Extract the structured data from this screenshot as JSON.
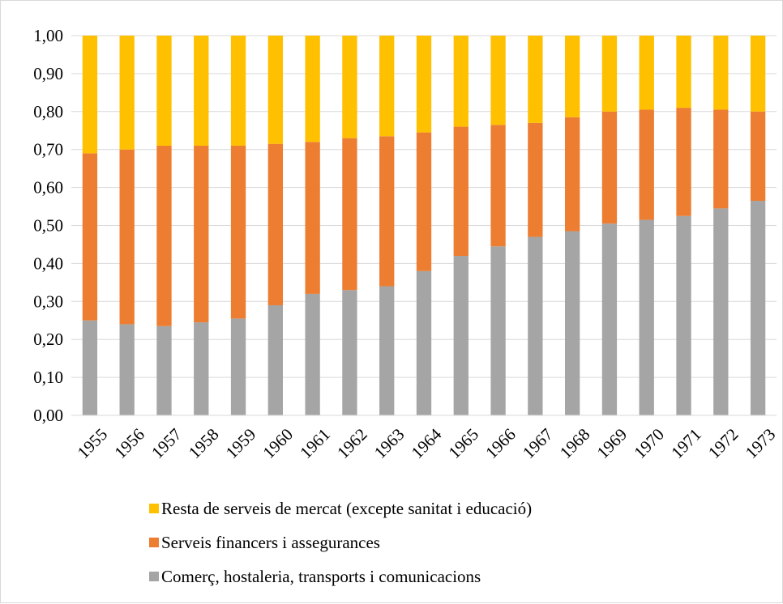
{
  "chart_data": {
    "type": "bar",
    "stacked": true,
    "title": "",
    "xlabel": "",
    "ylabel": "",
    "ylim": [
      0,
      1
    ],
    "y_ticks": [
      "0,00",
      "0,10",
      "0,20",
      "0,30",
      "0,40",
      "0,50",
      "0,60",
      "0,70",
      "0,80",
      "0,90",
      "1,00"
    ],
    "grid": "horizontal",
    "legend_position": "bottom",
    "categories": [
      "1955",
      "1956",
      "1957",
      "1958",
      "1959",
      "1960",
      "1961",
      "1962",
      "1963",
      "1964",
      "1965",
      "1966",
      "1967",
      "1968",
      "1969",
      "1970",
      "1971",
      "1972",
      "1973"
    ],
    "series": [
      {
        "name": "Comerç, hostaleria, transports i comunicacions",
        "color": "#a5a5a5",
        "values": [
          0.25,
          0.24,
          0.235,
          0.245,
          0.255,
          0.29,
          0.32,
          0.33,
          0.34,
          0.38,
          0.42,
          0.445,
          0.47,
          0.485,
          0.505,
          0.515,
          0.525,
          0.545,
          0.565
        ]
      },
      {
        "name": "Serveis financers i assegurances",
        "color": "#ed7d31",
        "values": [
          0.44,
          0.46,
          0.475,
          0.465,
          0.455,
          0.425,
          0.4,
          0.4,
          0.395,
          0.365,
          0.34,
          0.32,
          0.3,
          0.3,
          0.295,
          0.29,
          0.285,
          0.26,
          0.235
        ]
      },
      {
        "name": "Resta de serveis de mercat (excepte sanitat i educació)",
        "color": "#ffc000",
        "values": [
          0.31,
          0.3,
          0.29,
          0.29,
          0.29,
          0.285,
          0.28,
          0.27,
          0.265,
          0.255,
          0.24,
          0.235,
          0.23,
          0.215,
          0.2,
          0.195,
          0.19,
          0.195,
          0.2
        ]
      }
    ],
    "legend_order": [
      2,
      1,
      0
    ]
  },
  "colors": {
    "grid": "#d9d9d9",
    "border": "#d9d9d9",
    "text": "#000000"
  }
}
